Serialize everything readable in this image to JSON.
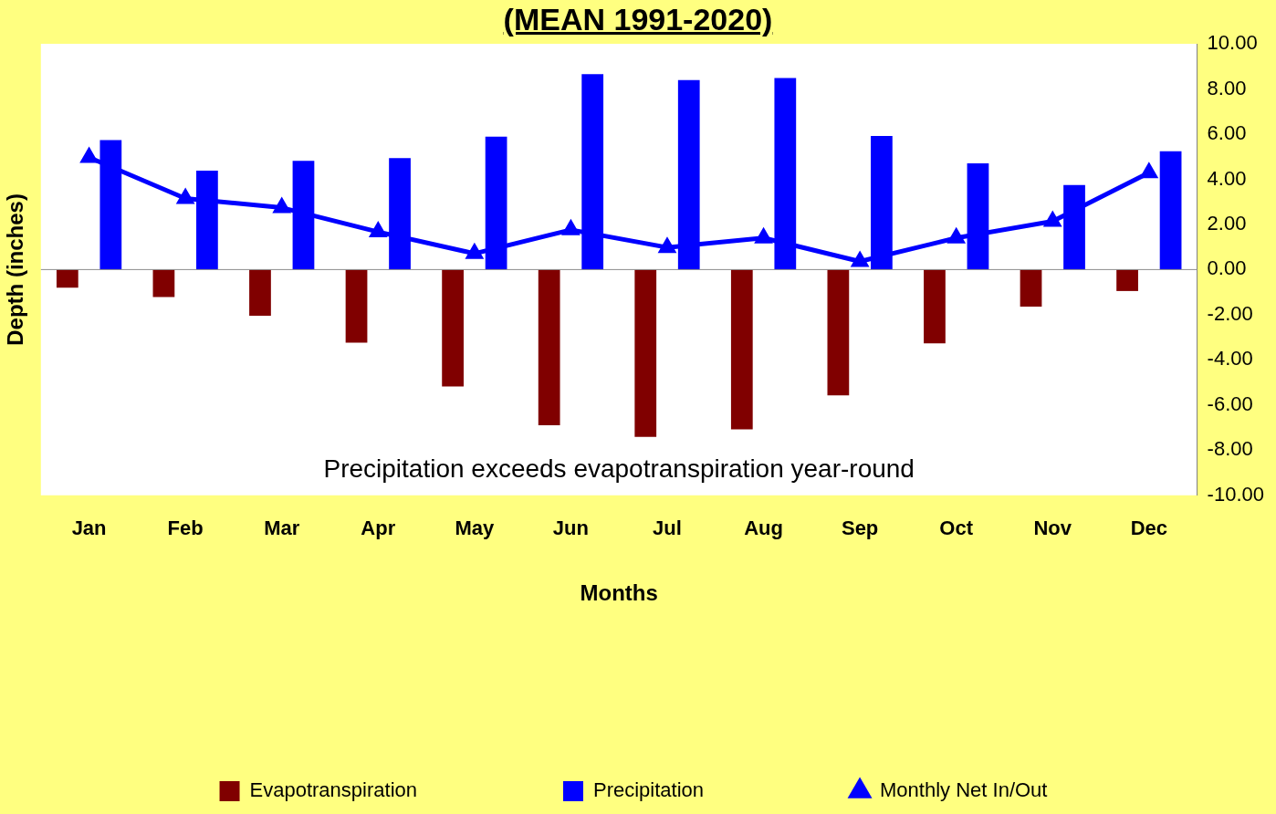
{
  "chart_data": {
    "type": "bar",
    "title": "(MEAN 1991-2020)",
    "xlabel": "Months",
    "ylabel": "Depth (inches)",
    "categories": [
      "Jan",
      "Feb",
      "Mar",
      "Apr",
      "May",
      "Jun",
      "Jul",
      "Aug",
      "Sep",
      "Oct",
      "Nov",
      "Dec"
    ],
    "series": [
      {
        "name": "Evapotranspiration",
        "color": "#800000",
        "values": [
          -0.8,
          -1.22,
          -2.05,
          -3.24,
          -5.18,
          -6.9,
          -7.41,
          -7.08,
          -5.57,
          -3.27,
          -1.64,
          -0.95
        ]
      },
      {
        "name": "Precipitation",
        "color": "#0000ff",
        "values": [
          5.74,
          4.38,
          4.82,
          4.94,
          5.89,
          8.66,
          8.39,
          8.48,
          5.92,
          4.7,
          3.75,
          5.24
        ]
      },
      {
        "name": "Monthly Net In/Out",
        "type": "line",
        "color": "#0000ff",
        "marker": "triangle",
        "values": [
          4.97,
          3.15,
          2.74,
          1.67,
          0.71,
          1.76,
          0.98,
          1.4,
          0.36,
          1.4,
          2.14,
          4.29
        ]
      }
    ],
    "ylim": [
      -10,
      10
    ],
    "yticks": [
      {
        "value": -10,
        "label": "-10.00"
      },
      {
        "value": -8,
        "label": "-8.00"
      },
      {
        "value": -6,
        "label": "-6.00"
      },
      {
        "value": -4,
        "label": "-4.00"
      },
      {
        "value": -2,
        "label": "-2.00"
      },
      {
        "value": 0,
        "label": "0.00"
      },
      {
        "value": 2,
        "label": "2.00"
      },
      {
        "value": 4,
        "label": "4.00"
      },
      {
        "value": 6,
        "label": "6.00"
      },
      {
        "value": 8,
        "label": "8.00"
      },
      {
        "value": 10,
        "label": "10.00"
      }
    ],
    "annotations": [
      "Precipitation exceeds evapotranspiration year-round"
    ],
    "ref_lines": [
      {
        "axis": "y",
        "value": 0,
        "color": "#8c8c8c"
      }
    ],
    "grid": false,
    "legend": "bottom"
  }
}
